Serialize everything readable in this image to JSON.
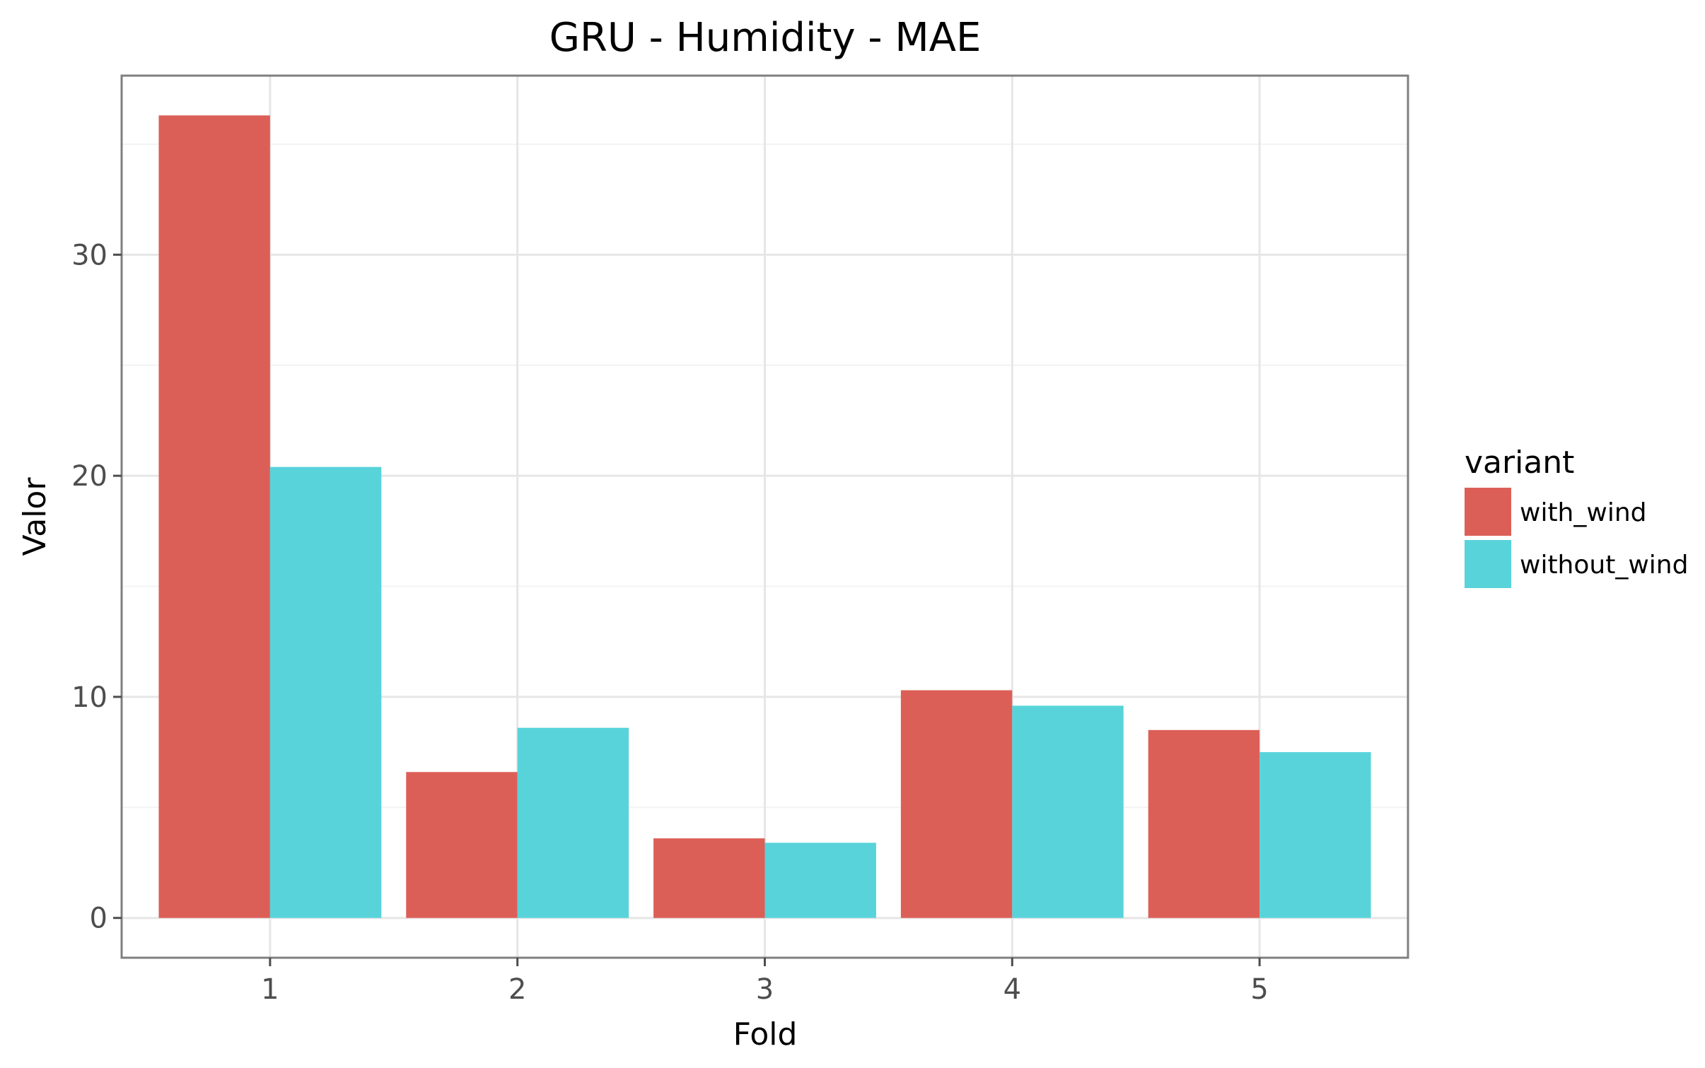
{
  "chart_data": {
    "type": "bar",
    "title": "GRU - Humidity - MAE",
    "xlabel": "Fold",
    "ylabel": "Valor",
    "categories": [
      "1",
      "2",
      "3",
      "4",
      "5"
    ],
    "series": [
      {
        "name": "with_wind",
        "color": "#dc5f57",
        "values": [
          36.3,
          6.6,
          3.6,
          10.3,
          8.5
        ]
      },
      {
        "name": "without_wind",
        "color": "#58d3da",
        "values": [
          20.4,
          8.6,
          3.4,
          9.6,
          7.5
        ]
      }
    ],
    "ylim": [
      -1.8,
      38.1
    ],
    "yticks": [
      0,
      10,
      20,
      30
    ],
    "grid": true,
    "legend": {
      "title": "variant",
      "position": "right"
    }
  }
}
